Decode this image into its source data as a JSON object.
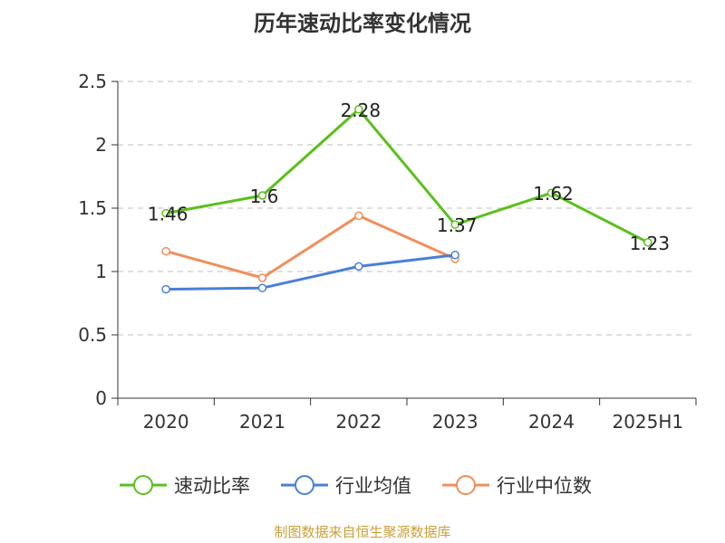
{
  "title": "历年速动比率变化情况",
  "source": "制图数据来自恒生聚源数据库",
  "colors": {
    "速动比率": "#5cbf1c",
    "行业均值": "#4a7fd8",
    "行业中位数": "#f28e5b",
    "grid": "#cccccc",
    "axis": "#333333"
  },
  "chart_data": {
    "type": "line",
    "categories": [
      "2020",
      "2021",
      "2022",
      "2023",
      "2024",
      "2025H1"
    ],
    "ylim": [
      0,
      2.5
    ],
    "yticks": [
      0,
      0.5,
      1,
      1.5,
      2,
      2.5
    ],
    "ytick_labels": [
      "0",
      "0.5",
      "1",
      "1.5",
      "2",
      "2.5"
    ],
    "grid": true,
    "legend_position": "bottom",
    "series": [
      {
        "name": "速动比率",
        "values": [
          1.46,
          1.6,
          2.28,
          1.37,
          1.62,
          1.23
        ],
        "labels": [
          "1.46",
          "1.6",
          "2.28",
          "1.37",
          "1.62",
          "1.23"
        ],
        "show_labels": true
      },
      {
        "name": "行业均值",
        "values": [
          0.86,
          0.87,
          1.04,
          1.13,
          null,
          null
        ],
        "show_labels": false
      },
      {
        "name": "行业中位数",
        "values": [
          1.16,
          0.95,
          1.44,
          1.1,
          null,
          null
        ],
        "show_labels": false
      }
    ]
  }
}
